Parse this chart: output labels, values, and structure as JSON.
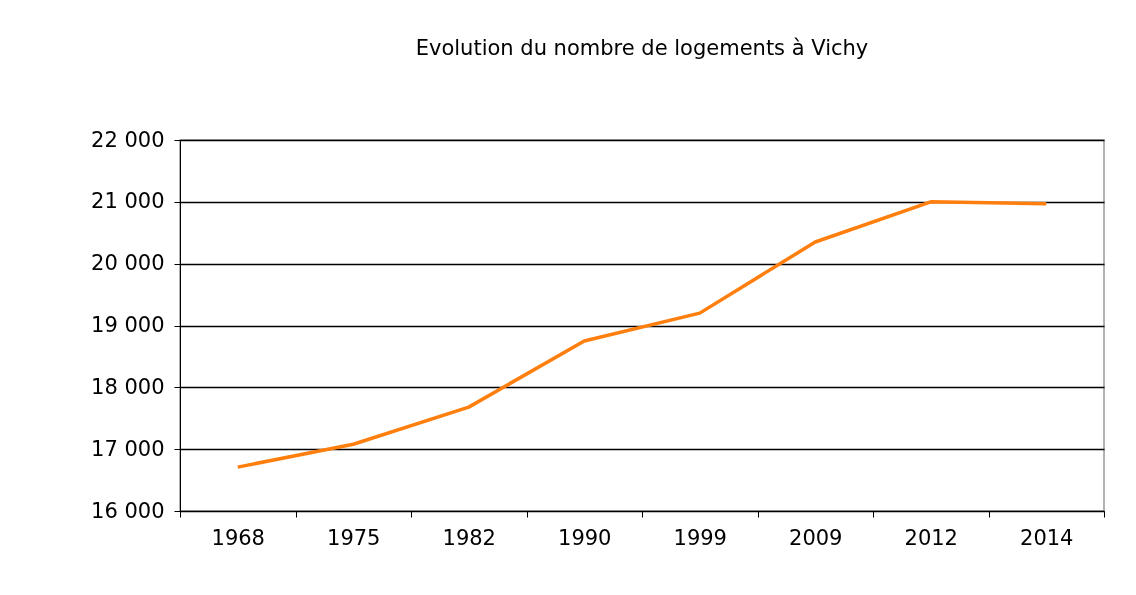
{
  "chart_data": {
    "type": "line",
    "title": "Evolution du nombre de logements à Vichy",
    "categories": [
      "1968",
      "1975",
      "1982",
      "1990",
      "1999",
      "2009",
      "2012",
      "2014"
    ],
    "series": [
      {
        "color": "#ff7f0e",
        "values": [
          16710,
          17080,
          17680,
          18750,
          19200,
          20350,
          21000,
          20970
        ]
      }
    ],
    "ylim": [
      16000,
      22000
    ],
    "yticks": [
      {
        "value": 16000,
        "label": "16 000"
      },
      {
        "value": 17000,
        "label": "17 000"
      },
      {
        "value": 18000,
        "label": "18 000"
      },
      {
        "value": 19000,
        "label": "19 000"
      },
      {
        "value": 20000,
        "label": "20 000"
      },
      {
        "value": 21000,
        "label": "21 000"
      },
      {
        "value": 22000,
        "label": "22 000"
      }
    ],
    "grid": "y",
    "legend": false,
    "marker": "none",
    "line_style": "solid"
  }
}
